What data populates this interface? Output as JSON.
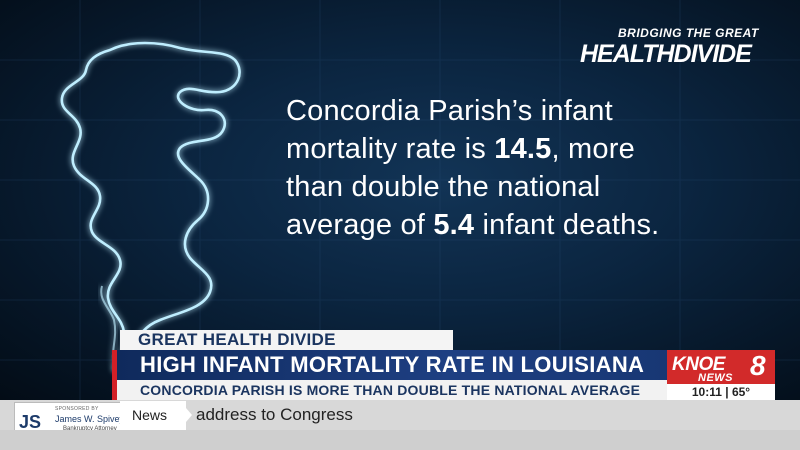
{
  "brand": {
    "top": "BRIDGING THE GREAT",
    "main": "HEALTHDIVIDE"
  },
  "statement": {
    "line1": "Concordia Parish’s infant",
    "line2_pre": "mortality rate is ",
    "line2_value": "14.5",
    "line2_post": ", more",
    "line3": "than double the national",
    "line4_pre": "average of ",
    "line4_value": "5.4",
    "line4_post": " infant deaths."
  },
  "lower_third": {
    "tag": "GREAT HEALTH DIVIDE",
    "headline": "HIGH INFANT MORTALITY RATE IN LOUISIANA",
    "subline": "CONCORDIA PARISH IS MORE THAN DOUBLE THE NATIONAL AVERAGE"
  },
  "station": {
    "name": "KNOE",
    "number": "8",
    "news": "NEWS",
    "time": "10:11",
    "separator": "|",
    "temp": "65°"
  },
  "ticker": {
    "sponsor_small": "SPONSORED BY",
    "sponsor_initials": "JS",
    "sponsor_name": "James W. Spivey II",
    "sponsor_sub": "Bankruptcy Attorney",
    "tab": "News",
    "text": "address to Congress"
  },
  "colors": {
    "accent_red": "#d32027",
    "navy": "#1b3560",
    "glow": "#7fd6ff"
  }
}
